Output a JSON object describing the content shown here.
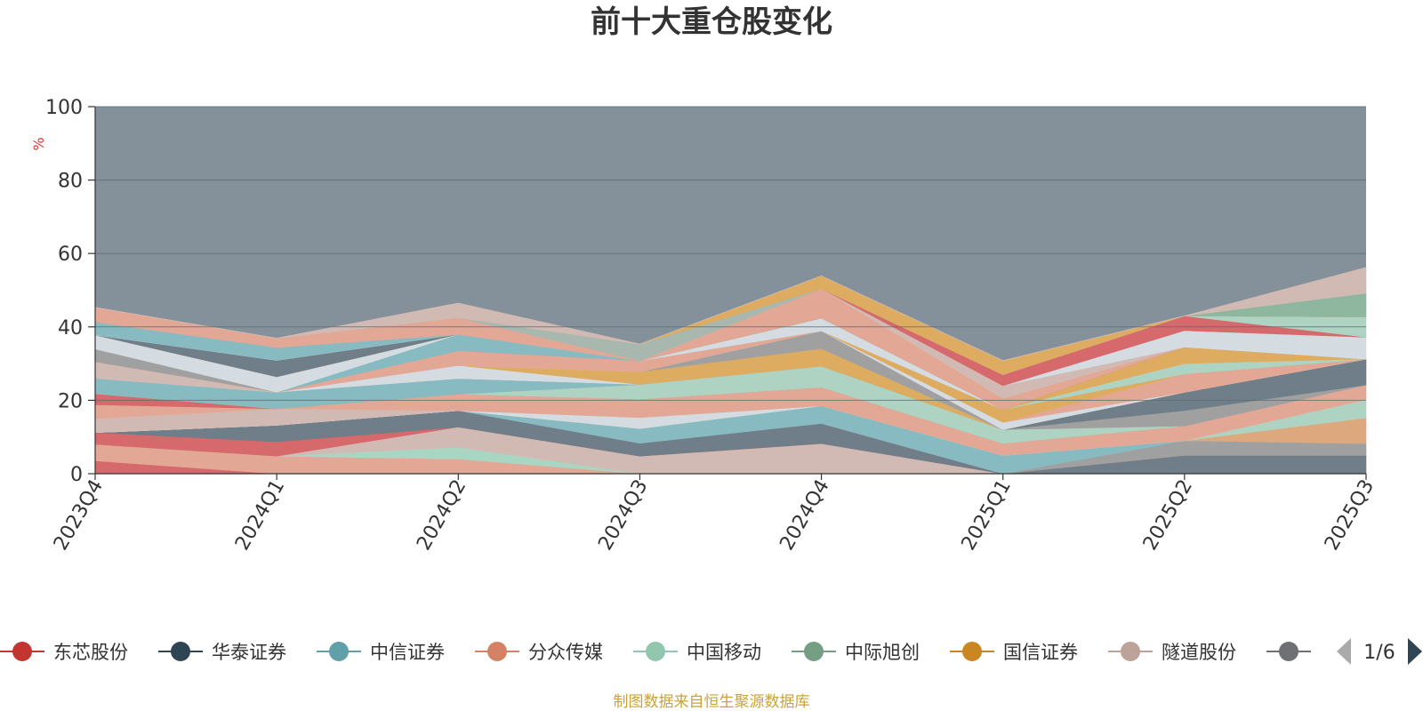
{
  "chart_data": {
    "type": "area",
    "title": "前十大重仓股变化",
    "ylabel": "%",
    "ylim": [
      0,
      100
    ],
    "yticks": [
      "0",
      "20",
      "40",
      "60",
      "80",
      "100"
    ],
    "categories": [
      "2023Q4",
      "2024Q1",
      "2024Q2",
      "2024Q3",
      "2024Q4",
      "2025Q1",
      "2025Q2",
      "2025Q3"
    ],
    "grid": true,
    "stacked": true,
    "background_total": 100,
    "series": [
      {
        "name": "东芯股份",
        "color": "#d9676a",
        "values": [
          3.5,
          0,
          0,
          0,
          0,
          0,
          0,
          0
        ]
      },
      {
        "name": "",
        "color": "#e6a795",
        "values": [
          4.5,
          4.8,
          4.0,
          0,
          0,
          0,
          0,
          0
        ]
      },
      {
        "name": "",
        "color": "#a9d8c3",
        "values": [
          0,
          0,
          3.2,
          0,
          0,
          0,
          0,
          0
        ]
      },
      {
        "name": "",
        "color": "#d5bbb5",
        "values": [
          0,
          0,
          5.5,
          4.8,
          8.2,
          0,
          0,
          0
        ]
      },
      {
        "name": "",
        "color": "#d9676a",
        "values": [
          3.2,
          3.9,
          0,
          0,
          0,
          0,
          0,
          0
        ]
      },
      {
        "name": "华泰证券",
        "color": "#6f7d88",
        "values": [
          0,
          4.5,
          4.5,
          3.5,
          5.5,
          0,
          5.0,
          5.0
        ]
      },
      {
        "name": "",
        "color": "#a2a0a0",
        "values": [
          0,
          0,
          0,
          0,
          0,
          0,
          4.0,
          3.2
        ]
      },
      {
        "name": "中信证券",
        "color": "#88bcc2",
        "values": [
          0,
          0,
          0,
          4.0,
          4.8,
          5.0,
          0,
          0
        ]
      },
      {
        "name": "",
        "color": "#e0a87c",
        "values": [
          0,
          0,
          0,
          0,
          0,
          0,
          0,
          7.0
        ]
      },
      {
        "name": "",
        "color": "#b0d5c3",
        "values": [
          0,
          0,
          0,
          0,
          0,
          0,
          0,
          5.0
        ]
      },
      {
        "name": "",
        "color": "#d7dde3",
        "values": [
          0,
          0,
          0,
          3.0,
          0,
          0,
          0,
          0
        ]
      },
      {
        "name": "隧道股份",
        "color": "#d5bbb5",
        "values": [
          3.8,
          4.5,
          0,
          0,
          0,
          0,
          0,
          0
        ]
      },
      {
        "name": "分众传媒",
        "color": "#e6a795",
        "values": [
          3.8,
          0,
          4.5,
          5.0,
          5.0,
          3.2,
          4.0,
          4.0
        ]
      },
      {
        "name": "",
        "color": "#d9676a",
        "values": [
          3.0,
          0,
          0,
          0,
          0,
          0,
          0,
          0
        ]
      },
      {
        "name": "中国移动",
        "color": "#b0d5c3",
        "values": [
          0,
          0,
          0,
          4.0,
          5.8,
          3.8,
          0,
          0
        ]
      },
      {
        "name": "",
        "color": "#a2a0a0",
        "values": [
          0,
          0,
          0,
          0,
          0,
          0,
          4.2,
          0
        ]
      },
      {
        "name": "国信证券",
        "color": "#e0ac5e",
        "values": [
          0,
          0,
          0,
          0,
          4.8,
          0,
          0,
          0
        ]
      },
      {
        "name": "",
        "color": "#88bcc2",
        "values": [
          4.2,
          4.5,
          4.2,
          0,
          0,
          0,
          0,
          0
        ]
      },
      {
        "name": "",
        "color": "#6f7d88",
        "values": [
          0,
          0,
          0,
          0,
          0,
          0,
          5.0,
          7.0
        ]
      },
      {
        "name": "",
        "color": "#d7dde3",
        "values": [
          0,
          0,
          3.6,
          0,
          0,
          0,
          0,
          0
        ]
      },
      {
        "name": "",
        "color": "#e0ac5e",
        "values": [
          0,
          0,
          0,
          3.5,
          0,
          0,
          0,
          0
        ]
      },
      {
        "name": "",
        "color": "#a2a0a0",
        "values": [
          0,
          0,
          0,
          0,
          4.8,
          0,
          0,
          0
        ]
      },
      {
        "name": "",
        "color": "#d7dde3",
        "values": [
          0,
          0,
          0,
          0,
          0,
          2.0,
          0,
          0
        ]
      },
      {
        "name": "",
        "color": "#d5bbb5",
        "values": [
          4.5,
          0,
          0,
          0,
          0,
          0,
          0,
          0
        ]
      },
      {
        "name": "",
        "color": "#e6a795",
        "values": [
          0,
          0,
          4.0,
          3.0,
          0,
          0,
          5.0,
          0
        ]
      },
      {
        "name": "",
        "color": "#e0ac5e",
        "values": [
          0,
          0,
          0,
          0,
          0,
          3.5,
          0,
          0
        ]
      },
      {
        "name": "",
        "color": "#a2a0a0",
        "values": [
          3.5,
          0,
          0,
          0,
          0,
          0,
          0,
          0
        ]
      },
      {
        "name": "",
        "color": "#88bcc2",
        "values": [
          0,
          0,
          4.5,
          0,
          0,
          0,
          0,
          0
        ]
      },
      {
        "name": "",
        "color": "#b0d5c3",
        "values": [
          0,
          0,
          0,
          0,
          0,
          0,
          2.8,
          0
        ]
      },
      {
        "name": "",
        "color": "#d7dde3",
        "values": [
          3.8,
          4.2,
          0,
          0,
          3.5,
          0,
          0,
          0
        ]
      },
      {
        "name": "",
        "color": "#e0ac5e",
        "values": [
          0,
          0,
          0,
          0,
          0,
          0,
          4.5,
          0
        ]
      },
      {
        "name": "",
        "color": "#6f7d88",
        "values": [
          0,
          4.5,
          0,
          0,
          0,
          0,
          0,
          0
        ]
      },
      {
        "name": "",
        "color": "#e6a795",
        "values": [
          0,
          0,
          0,
          0,
          8.0,
          3.0,
          0,
          0
        ]
      },
      {
        "name": "",
        "color": "#d5bbb5",
        "values": [
          0,
          0,
          0,
          0,
          0,
          3.5,
          0,
          0
        ]
      },
      {
        "name": "",
        "color": "#d7dde3",
        "values": [
          0,
          0,
          0,
          0,
          0,
          0,
          4.5,
          6.0
        ]
      },
      {
        "name": "",
        "color": "#88bcc2",
        "values": [
          3.5,
          3.5,
          0,
          0,
          0,
          0,
          0,
          0
        ]
      },
      {
        "name": "",
        "color": "#e6a795",
        "values": [
          4.0,
          0,
          0,
          0,
          0,
          0,
          0,
          0
        ]
      },
      {
        "name": "",
        "color": "#d9676a",
        "values": [
          0,
          0,
          0,
          0,
          0,
          3.0,
          4.0,
          0
        ]
      },
      {
        "name": "",
        "color": "#b0d5c3",
        "values": [
          0,
          0,
          0,
          0,
          0,
          0,
          0,
          5.5
        ]
      },
      {
        "name": "",
        "color": "#e6a795",
        "values": [
          0,
          2.5,
          4.5,
          0,
          0,
          0,
          0,
          0
        ]
      },
      {
        "name": "",
        "color": "#a9b9b0",
        "values": [
          0,
          0,
          0,
          4.5,
          0,
          0,
          0,
          0
        ]
      },
      {
        "name": "",
        "color": "#e0ac5e",
        "values": [
          0,
          0,
          0,
          0,
          3.5,
          3.8,
          0,
          0
        ]
      },
      {
        "name": "",
        "color": "#8fb8a0",
        "values": [
          0,
          0,
          0,
          0,
          0,
          0,
          0,
          6.5
        ]
      },
      {
        "name": "",
        "color": "#d5bbb5",
        "values": [
          0,
          0,
          4.0,
          0,
          0,
          0,
          0,
          0
        ]
      },
      {
        "name": "",
        "color": "#d5bbb5",
        "values": [
          0,
          0,
          0,
          0,
          0,
          0,
          0,
          7.0
        ]
      }
    ],
    "legend": {
      "placement": "bottom",
      "items": [
        {
          "name": "东芯股份",
          "color": "#c23531"
        },
        {
          "name": "华泰证券",
          "color": "#2f4554"
        },
        {
          "name": "中信证券",
          "color": "#61a0a8"
        },
        {
          "name": "分众传媒",
          "color": "#d48265"
        },
        {
          "name": "中国移动",
          "color": "#91c7ae"
        },
        {
          "name": "中际旭创",
          "color": "#749f83"
        },
        {
          "name": "国信证券",
          "color": "#ca8622"
        },
        {
          "name": "隧道股份",
          "color": "#bda29a"
        },
        {
          "name": "",
          "color": "#6e7074"
        }
      ],
      "page": "1/6"
    },
    "source": "制图数据来自恒生聚源数据库"
  }
}
